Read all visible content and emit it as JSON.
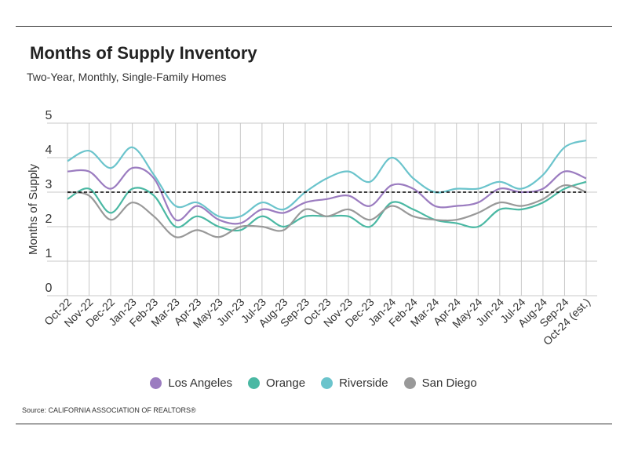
{
  "header": {
    "title": "Months of Supply Inventory",
    "subtitle": "Two-Year, Monthly, Single-Family Homes"
  },
  "footer": {
    "source": "Source:  CALIFORNIA ASSOCIATION OF REALTORS®"
  },
  "chart_data": {
    "type": "line",
    "ylabel": "Months of Supply",
    "xlabel": "",
    "ylim": [
      0,
      5
    ],
    "yticks": [
      0,
      1,
      2,
      3,
      4,
      5
    ],
    "grid": true,
    "legend_position": "bottom",
    "reference_line": 3,
    "categories": [
      "Oct-22",
      "Nov-22",
      "Dec-22",
      "Jan-23",
      "Feb-23",
      "Mar-23",
      "Apr-23",
      "May-23",
      "Jun-23",
      "Jul-23",
      "Aug-23",
      "Sep-23",
      "Oct-23",
      "Nov-23",
      "Dec-23",
      "Jan-24",
      "Feb-24",
      "Mar-24",
      "Apr-24",
      "May-24",
      "Jun-24",
      "Jul-24",
      "Aug-24",
      "Sep-24",
      "Oct-24 (est.)"
    ],
    "series": [
      {
        "name": "Los Angeles",
        "color": "#9b7cc0",
        "values": [
          3.6,
          3.6,
          3.1,
          3.7,
          3.4,
          2.2,
          2.6,
          2.2,
          2.1,
          2.5,
          2.4,
          2.7,
          2.8,
          2.9,
          2.6,
          3.2,
          3.1,
          2.6,
          2.6,
          2.7,
          3.1,
          3.0,
          3.1,
          3.6,
          3.4
        ]
      },
      {
        "name": "Orange",
        "color": "#4ab8a3",
        "values": [
          2.8,
          3.1,
          2.4,
          3.1,
          2.9,
          2.0,
          2.3,
          2.0,
          1.9,
          2.3,
          2.0,
          2.3,
          2.3,
          2.3,
          2.0,
          2.7,
          2.5,
          2.2,
          2.1,
          2.0,
          2.5,
          2.5,
          2.7,
          3.1,
          3.3
        ]
      },
      {
        "name": "Riverside",
        "color": "#6bc4cc",
        "values": [
          3.9,
          4.2,
          3.7,
          4.3,
          3.5,
          2.6,
          2.7,
          2.3,
          2.3,
          2.7,
          2.5,
          3.0,
          3.4,
          3.6,
          3.3,
          4.0,
          3.4,
          3.0,
          3.1,
          3.1,
          3.3,
          3.1,
          3.5,
          4.3,
          4.5
        ]
      },
      {
        "name": "San Diego",
        "color": "#999999",
        "values": [
          3.0,
          2.9,
          2.2,
          2.7,
          2.3,
          1.7,
          1.9,
          1.7,
          2.0,
          2.0,
          1.9,
          2.5,
          2.3,
          2.5,
          2.2,
          2.6,
          2.3,
          2.2,
          2.2,
          2.4,
          2.7,
          2.6,
          2.8,
          3.2,
          3.0
        ]
      }
    ]
  }
}
